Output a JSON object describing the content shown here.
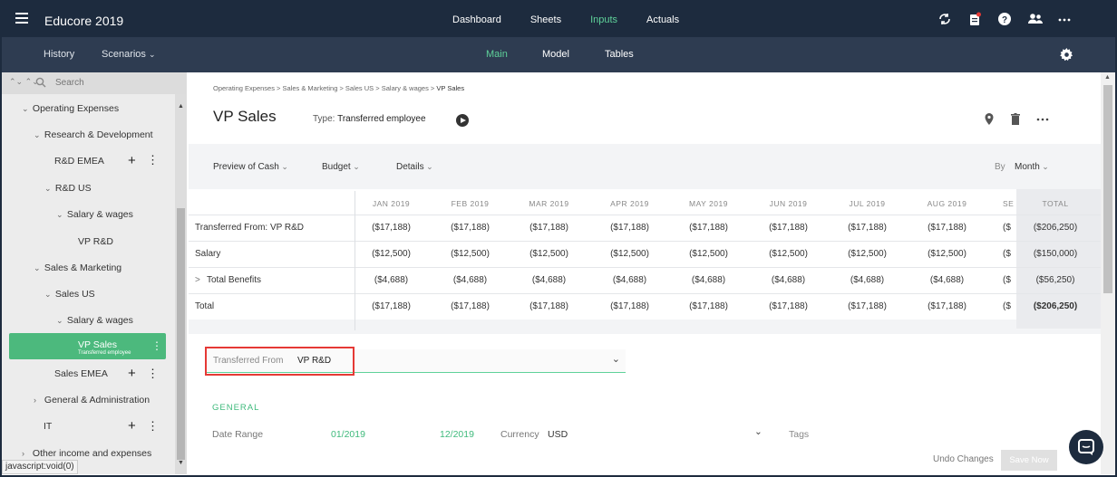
{
  "app": {
    "title": "Educore 2019"
  },
  "topnav": [
    "Dashboard",
    "Sheets",
    "Inputs",
    "Actuals"
  ],
  "subnav": {
    "history": "History",
    "scenarios": "Scenarios",
    "tabs": [
      "Main",
      "Model",
      "Tables"
    ]
  },
  "sidebar": {
    "search_placeholder": "Search",
    "tree": [
      {
        "label": "Operating Expenses",
        "chev": "v"
      },
      {
        "label": "Research & Development",
        "chev": "v"
      },
      {
        "label": "R&D EMEA",
        "chev": ""
      },
      {
        "label": "R&D US",
        "chev": "v"
      },
      {
        "label": "Salary & wages",
        "chev": "v"
      },
      {
        "label": "VP R&D",
        "chev": ""
      },
      {
        "label": "Sales & Marketing",
        "chev": "v"
      },
      {
        "label": "Sales US",
        "chev": "v"
      },
      {
        "label": "Salary & wages",
        "chev": "v"
      },
      {
        "label": "Sales EMEA",
        "chev": ""
      },
      {
        "label": "General & Administration",
        "chev": ">"
      },
      {
        "label": "IT",
        "chev": ""
      },
      {
        "label": "Other income and expenses",
        "chev": ">"
      }
    ],
    "selected": {
      "label": "VP Sales",
      "sub": "Transferred employee"
    }
  },
  "breadcrumb": {
    "path": "Operating Expenses > Sales & Marketing > Sales US > Salary & wages > ",
    "current": "VP Sales"
  },
  "page": {
    "title": "VP Sales",
    "type_label": "Type:",
    "type_value": "Transferred employee"
  },
  "filters": {
    "preview": "Preview of Cash",
    "budget": "Budget",
    "details": "Details",
    "by_label": "By",
    "by_value": "Month"
  },
  "table": {
    "columns": [
      "JAN 2019",
      "FEB 2019",
      "MAR 2019",
      "APR 2019",
      "MAY 2019",
      "JUN 2019",
      "JUL 2019",
      "AUG 2019",
      "SE"
    ],
    "total_header": "TOTAL",
    "rows": [
      {
        "label": "Transferred From: VP R&D",
        "values": [
          "($17,188)",
          "($17,188)",
          "($17,188)",
          "($17,188)",
          "($17,188)",
          "($17,188)",
          "($17,188)",
          "($17,188)",
          "($"
        ],
        "total": "($206,250)"
      },
      {
        "label": "Salary",
        "values": [
          "($12,500)",
          "($12,500)",
          "($12,500)",
          "($12,500)",
          "($12,500)",
          "($12,500)",
          "($12,500)",
          "($12,500)",
          "($"
        ],
        "total": "($150,000)"
      },
      {
        "label": "Total Benefits",
        "expand": ">",
        "values": [
          "($4,688)",
          "($4,688)",
          "($4,688)",
          "($4,688)",
          "($4,688)",
          "($4,688)",
          "($4,688)",
          "($4,688)",
          "($"
        ],
        "total": "($56,250)"
      },
      {
        "label": "Total",
        "values": [
          "($17,188)",
          "($17,188)",
          "($17,188)",
          "($17,188)",
          "($17,188)",
          "($17,188)",
          "($17,188)",
          "($17,188)",
          "($"
        ],
        "total": "($206,250)"
      }
    ]
  },
  "form": {
    "transferred_label": "Transferred From",
    "transferred_value": "VP R&D",
    "section": "GENERAL",
    "date_range_label": "Date Range",
    "date_start": "01/2019",
    "date_end": "12/2019",
    "currency_label": "Currency",
    "currency_value": "USD",
    "tags_label": "Tags"
  },
  "footer": {
    "undo": "Undo Changes",
    "save": "Save Now"
  },
  "status_bar": "javascript:void(0)",
  "colors": {
    "nav": "#1d2b3e",
    "subnav": "#2e3c51",
    "accent": "#5fd29a",
    "selected": "#4cb97d",
    "highlight": "#e53935"
  }
}
